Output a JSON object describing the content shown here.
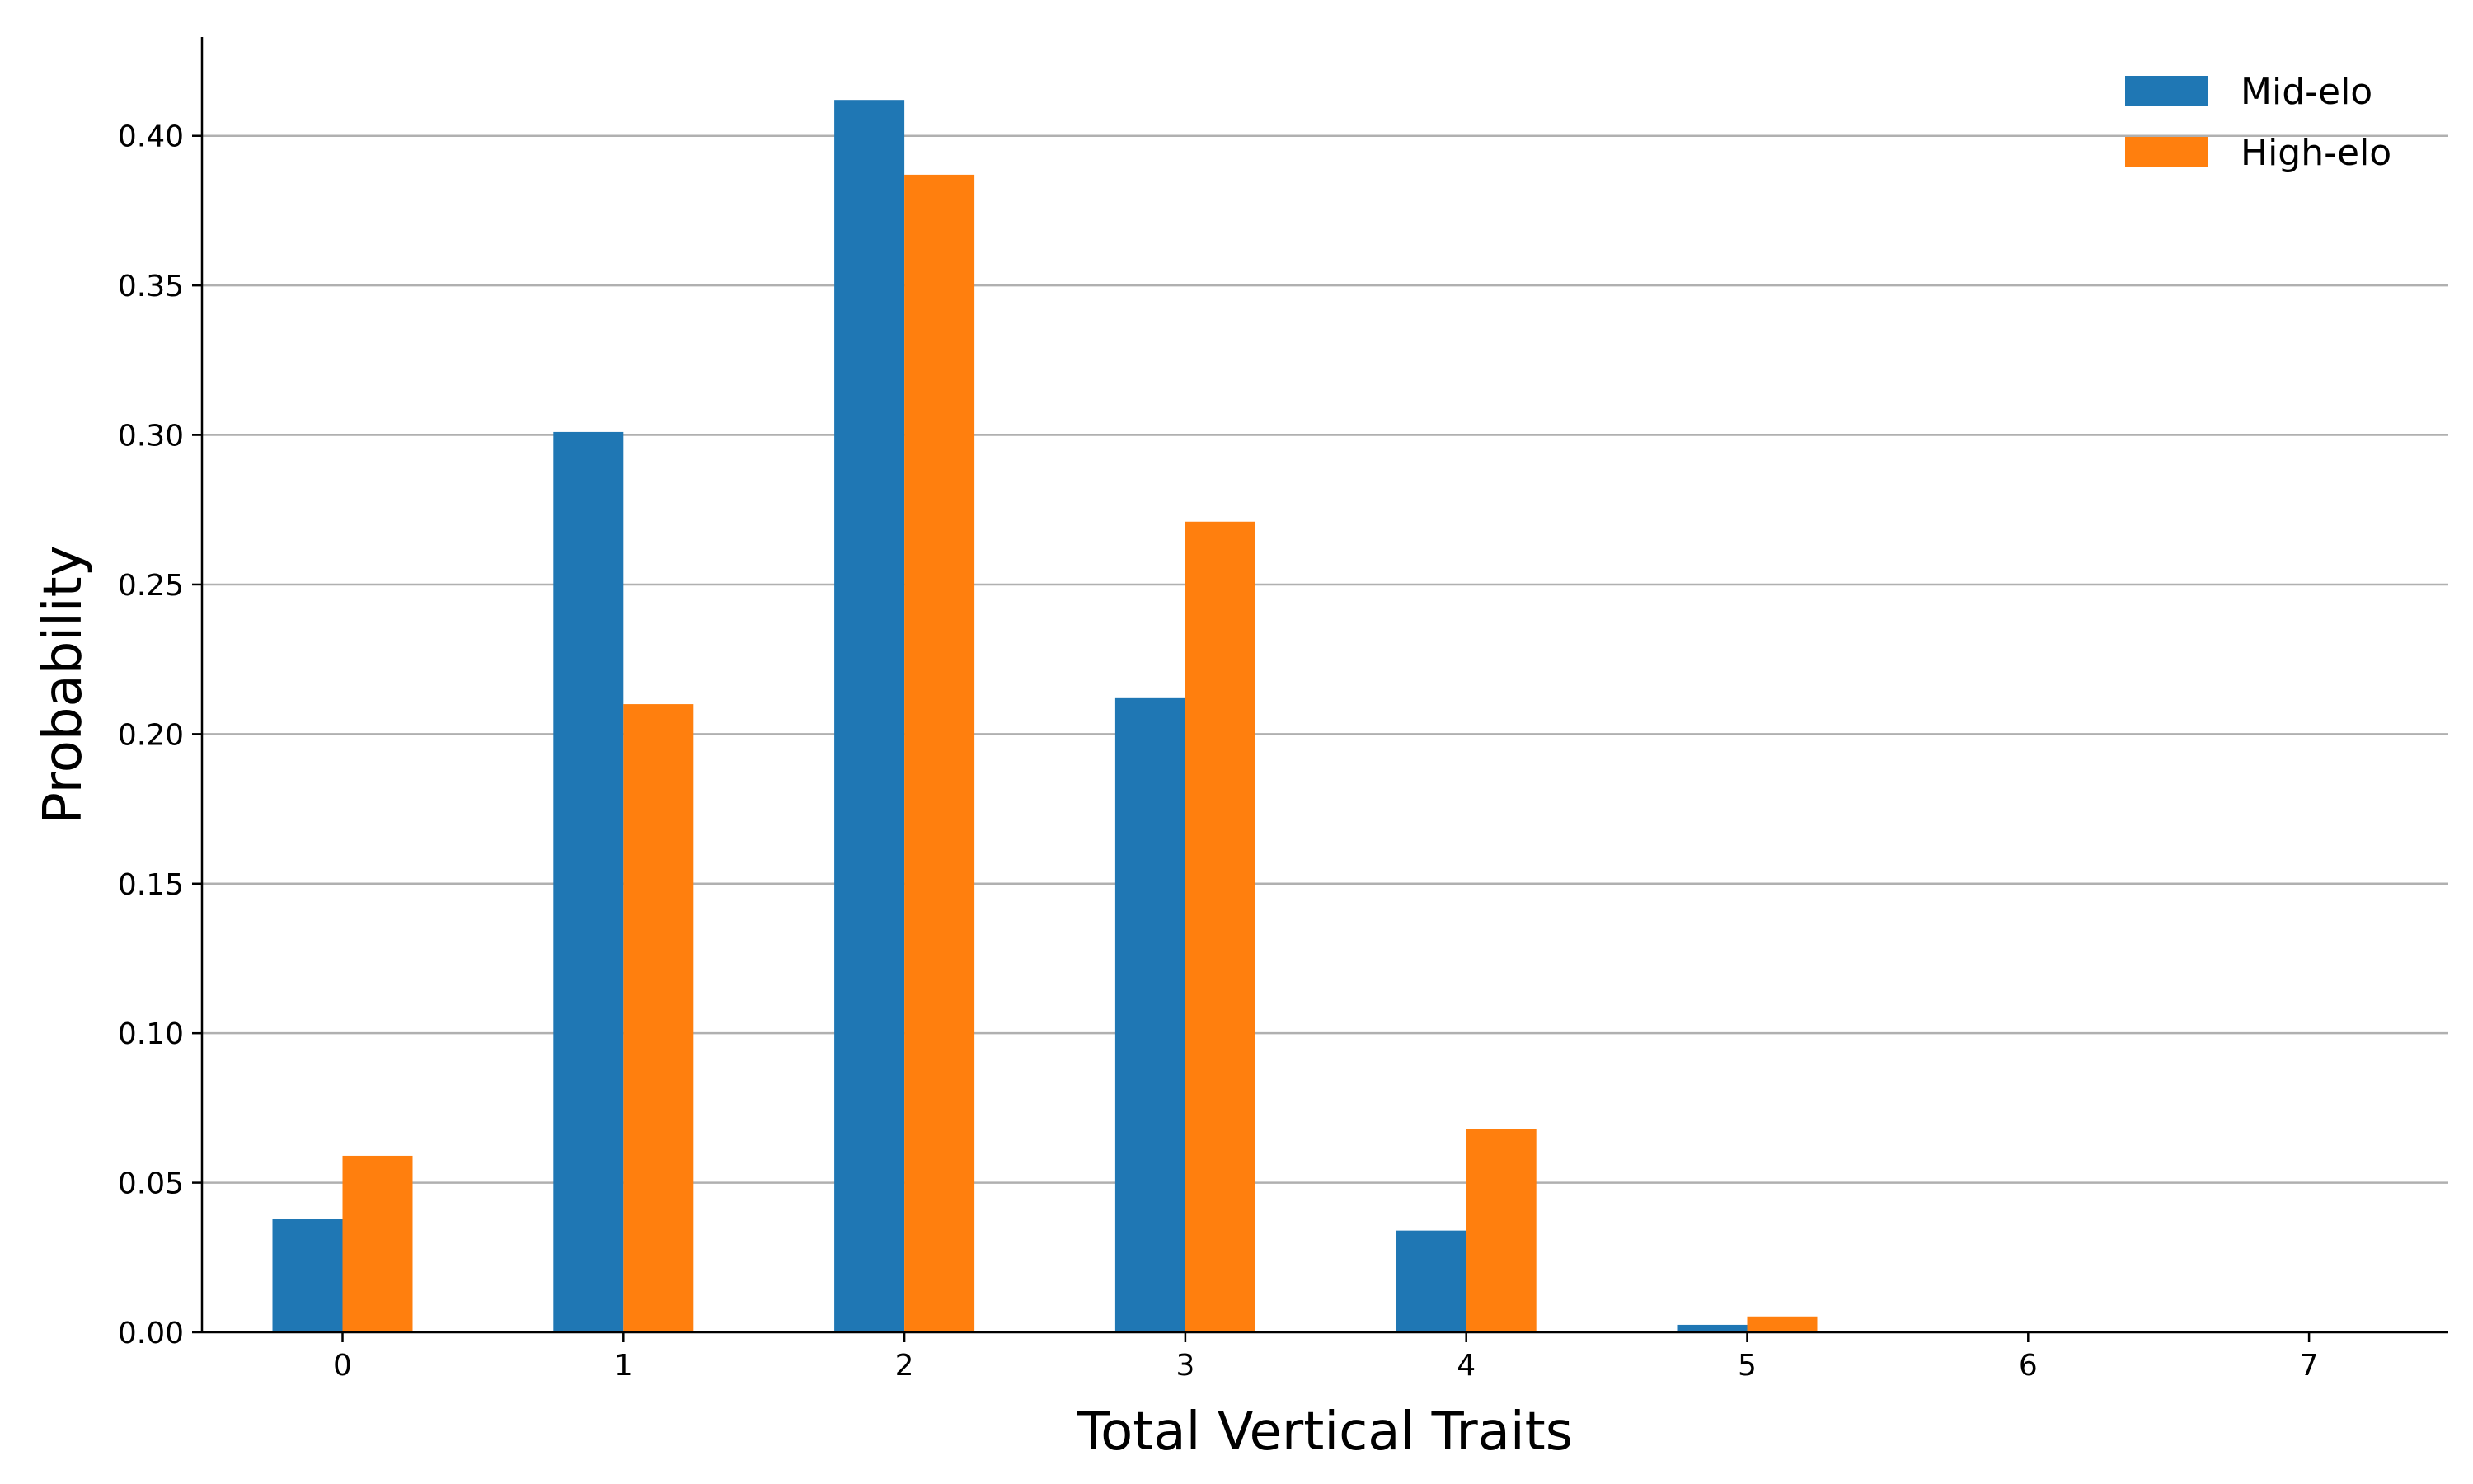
{
  "chart_data": {
    "type": "bar",
    "title": "",
    "xlabel": "Total Vertical Traits",
    "ylabel": "Probability",
    "categories": [
      "0",
      "1",
      "2",
      "3",
      "4",
      "5",
      "6",
      "7"
    ],
    "series": [
      {
        "name": "Mid-elo",
        "color": "#1f77b4",
        "values": [
          0.038,
          0.301,
          0.412,
          0.212,
          0.034,
          0.0025,
          0.0,
          0.0
        ]
      },
      {
        "name": "High-elo",
        "color": "#ff7f0e",
        "values": [
          0.059,
          0.21,
          0.387,
          0.271,
          0.068,
          0.0053,
          0.0,
          0.0
        ]
      }
    ],
    "ylim": [
      0,
      0.433
    ],
    "yticks": [
      "0.00",
      "0.05",
      "0.10",
      "0.15",
      "0.20",
      "0.25",
      "0.30",
      "0.35",
      "0.40"
    ],
    "grid": "horizontal",
    "legend_position": "top-right"
  }
}
